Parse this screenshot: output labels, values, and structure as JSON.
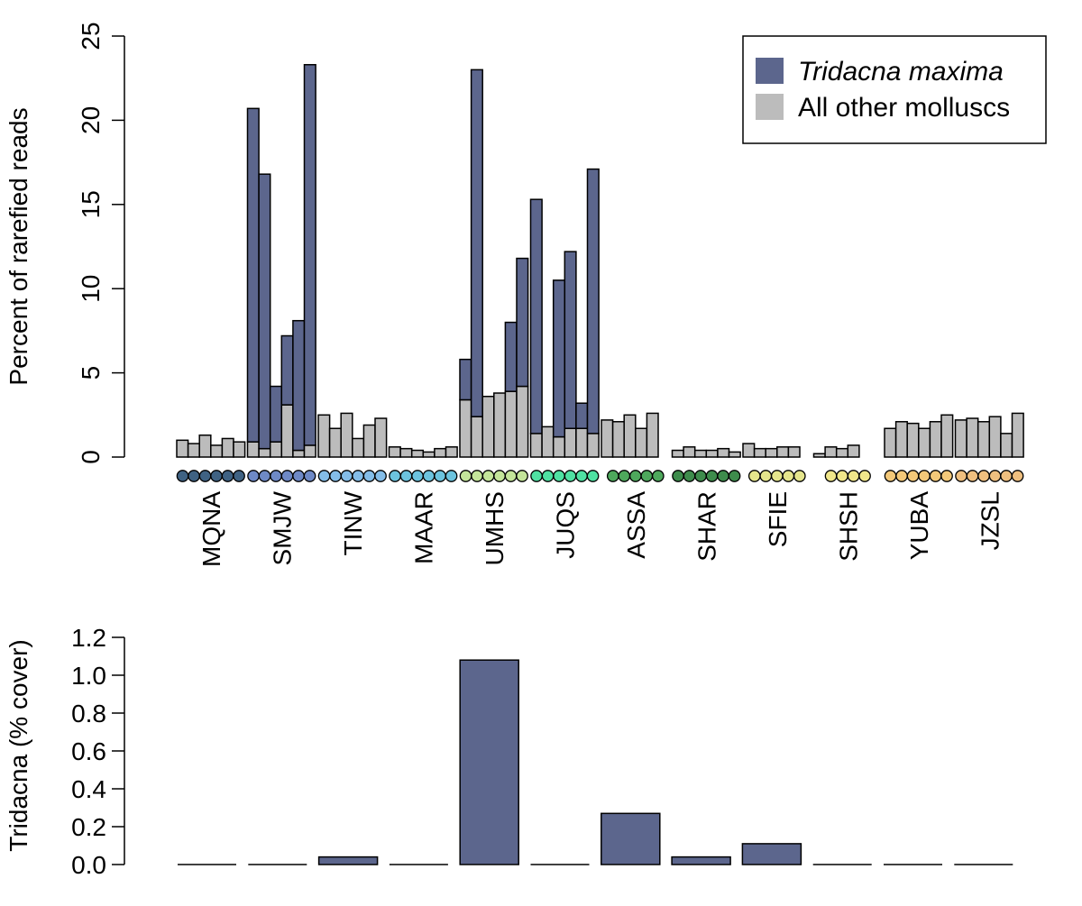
{
  "chart_data": [
    {
      "type": "bar",
      "stacked": true,
      "ylabel": "Percent of rarefied reads",
      "ylim": [
        0,
        25
      ],
      "yticks": [
        0,
        5,
        10,
        15,
        20,
        25
      ],
      "grid": false,
      "legend_position": "top-right",
      "legend": [
        {
          "label": "Tridacna maxima",
          "italic": true,
          "color": "#5c668d"
        },
        {
          "label": "All other molluscs",
          "italic": false,
          "color": "#bcbcbc"
        }
      ],
      "groups": [
        {
          "name": "MQNA",
          "dot_color": "#3f6283",
          "total": [
            1.0,
            0.8,
            1.3,
            0.7,
            1.1,
            0.9
          ],
          "other": [
            1.0,
            0.8,
            1.3,
            0.7,
            1.1,
            0.9
          ]
        },
        {
          "name": "SMJW",
          "dot_color": "#6e89c6",
          "total": [
            20.7,
            16.8,
            4.2,
            7.2,
            8.1,
            23.3
          ],
          "other": [
            0.9,
            0.5,
            0.9,
            3.1,
            0.4,
            0.7
          ]
        },
        {
          "name": "TINW",
          "dot_color": "#84bde8",
          "total": [
            2.5,
            1.7,
            2.6,
            1.1,
            1.9,
            2.3
          ],
          "other": [
            2.5,
            1.7,
            2.6,
            1.1,
            1.9,
            2.3
          ]
        },
        {
          "name": "MAAR",
          "dot_color": "#6cc3de",
          "total": [
            0.6,
            0.5,
            0.4,
            0.3,
            0.5,
            0.6
          ],
          "other": [
            0.6,
            0.5,
            0.4,
            0.3,
            0.5,
            0.6
          ]
        },
        {
          "name": "UMHS",
          "dot_color": "#c4e59a",
          "total": [
            5.8,
            23.0,
            3.6,
            3.8,
            8.0,
            11.8
          ],
          "other": [
            3.4,
            2.4,
            3.6,
            3.8,
            3.9,
            4.2
          ]
        },
        {
          "name": "JUQS",
          "dot_color": "#4fe1a2",
          "total": [
            15.3,
            1.8,
            10.5,
            12.2,
            3.2,
            17.1
          ],
          "other": [
            1.4,
            1.8,
            1.2,
            1.7,
            1.7,
            1.4
          ]
        },
        {
          "name": "ASSA",
          "dot_color": "#4ea85c",
          "total": [
            2.2,
            2.1,
            2.5,
            1.7,
            2.6
          ],
          "other": [
            2.2,
            2.1,
            2.5,
            1.7,
            2.6
          ]
        },
        {
          "name": "SHAR",
          "dot_color": "#3e8c4c",
          "total": [
            0.4,
            0.6,
            0.4,
            0.4,
            0.5,
            0.3
          ],
          "other": [
            0.4,
            0.6,
            0.4,
            0.4,
            0.5,
            0.3
          ]
        },
        {
          "name": "SFIE",
          "dot_color": "#e5e58c",
          "total": [
            0.8,
            0.5,
            0.5,
            0.6,
            0.6
          ],
          "other": [
            0.8,
            0.5,
            0.5,
            0.6,
            0.6
          ]
        },
        {
          "name": "SHSH",
          "dot_color": "#f0e68a",
          "total": [
            0.2,
            0.6,
            0.5,
            0.7
          ],
          "other": [
            0.2,
            0.6,
            0.5,
            0.7
          ]
        },
        {
          "name": "YUBA",
          "dot_color": "#f3c879",
          "total": [
            1.7,
            2.1,
            2.0,
            1.7,
            2.1,
            2.5
          ],
          "other": [
            1.7,
            2.1,
            2.0,
            1.7,
            2.1,
            2.5
          ]
        },
        {
          "name": "JZSL",
          "dot_color": "#efbf7f",
          "total": [
            2.2,
            2.3,
            2.1,
            2.4,
            1.4,
            2.6
          ],
          "other": [
            2.2,
            2.3,
            2.1,
            2.4,
            1.4,
            2.6
          ]
        }
      ]
    },
    {
      "type": "bar",
      "ylabel": "Tridacna (% cover)",
      "ylim": [
        0,
        1.2
      ],
      "yticks": [
        "0.0",
        "0.2",
        "0.4",
        "0.6",
        "0.8",
        "1.0",
        "1.2"
      ],
      "bar_color": "#5c668d",
      "grid": false,
      "categories": [
        "MQNA",
        "SMJW",
        "TINW",
        "MAAR",
        "UMHS",
        "JUQS",
        "ASSA",
        "SHAR",
        "SFIE",
        "SHSH",
        "YUBA",
        "JZSL"
      ],
      "values": [
        0,
        0,
        0.04,
        0,
        1.08,
        0,
        0.27,
        0.04,
        0.11,
        0,
        0,
        0
      ]
    }
  ]
}
